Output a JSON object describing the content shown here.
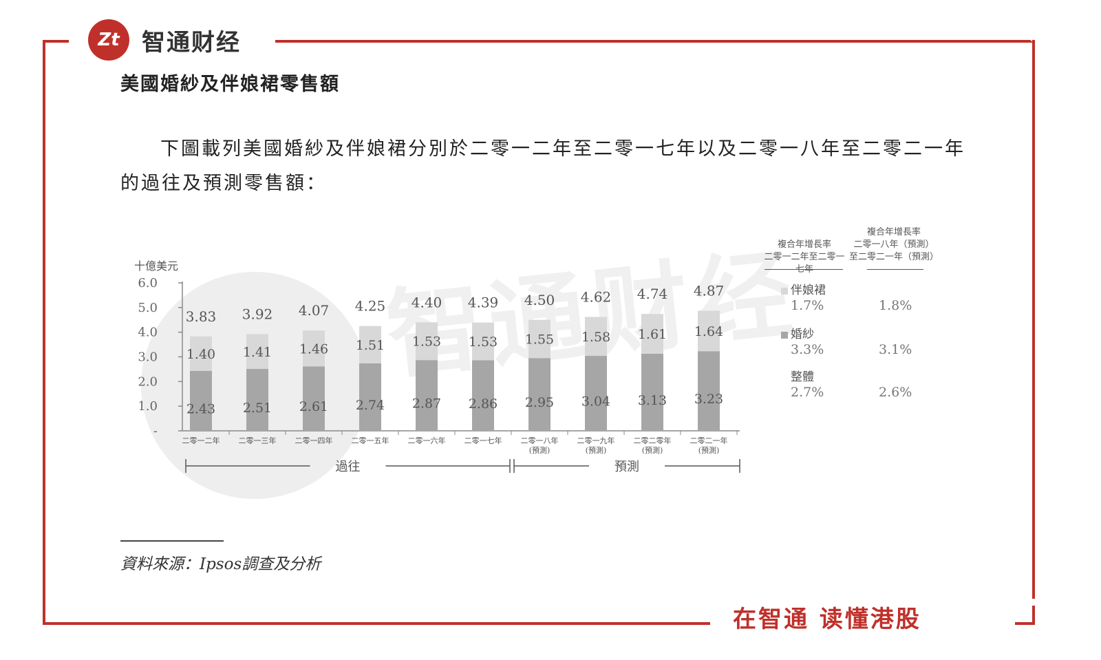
{
  "brand": {
    "logo_text": "Zt",
    "name": "智通财经"
  },
  "section_title": "美國婚紗及伴娘裙零售額",
  "paragraph": "下圖載列美國婚紗及伴娘裙分別於二零一二年至二零一七年以及二零一八年至二零二一年的過往及預測零售額：",
  "source": "資料來源：Ipsos調查及分析",
  "footer_slogan": "在智通 读懂港股",
  "watermark": "智通财经",
  "colors": {
    "accent": "#c0302b",
    "bridesmaid": "#d8d8d8",
    "wedding": "#a6a6a6"
  },
  "chart_data": {
    "type": "bar",
    "stacked": true,
    "ylabel": "十億美元",
    "ylim": [
      0,
      6.0
    ],
    "yticks": [
      "-",
      "1.0",
      "2.0",
      "3.0",
      "4.0",
      "5.0",
      "6.0"
    ],
    "categories": [
      {
        "label": "二零一二年",
        "sub": ""
      },
      {
        "label": "二零一三年",
        "sub": ""
      },
      {
        "label": "二零一四年",
        "sub": ""
      },
      {
        "label": "二零一五年",
        "sub": ""
      },
      {
        "label": "二零一六年",
        "sub": ""
      },
      {
        "label": "二零一七年",
        "sub": ""
      },
      {
        "label": "二零一八年",
        "sub": "(預測)"
      },
      {
        "label": "二零一九年",
        "sub": "(預測)"
      },
      {
        "label": "二零二零年",
        "sub": "(預測)"
      },
      {
        "label": "二零二一年",
        "sub": "(預測)"
      }
    ],
    "series": [
      {
        "name": "婚紗",
        "values": [
          2.43,
          2.51,
          2.61,
          2.74,
          2.87,
          2.86,
          2.95,
          3.04,
          3.13,
          3.23
        ]
      },
      {
        "name": "伴娘裙",
        "values": [
          1.4,
          1.41,
          1.46,
          1.51,
          1.53,
          1.53,
          1.55,
          1.58,
          1.61,
          1.64
        ]
      }
    ],
    "totals": [
      3.83,
      3.92,
      4.07,
      4.25,
      4.4,
      4.39,
      4.5,
      4.62,
      4.74,
      4.87
    ],
    "period_labels": {
      "past": "過往",
      "forecast": "預測"
    },
    "cagr_table": {
      "headers": [
        [
          "複合年增長率",
          "二零一二年至二零一七年"
        ],
        [
          "複合年增長率",
          "二零一八年（預測）",
          "至二零二一年（預測）"
        ]
      ],
      "rows": [
        {
          "label": "伴娘裙",
          "swatch": "#d8d8d8",
          "values": [
            "1.7%",
            "1.8%"
          ]
        },
        {
          "label": "婚紗",
          "swatch": "#a6a6a6",
          "values": [
            "3.3%",
            "3.1%"
          ]
        },
        {
          "label": "整體",
          "swatch": "",
          "values": [
            "2.7%",
            "2.6%"
          ]
        }
      ]
    }
  }
}
